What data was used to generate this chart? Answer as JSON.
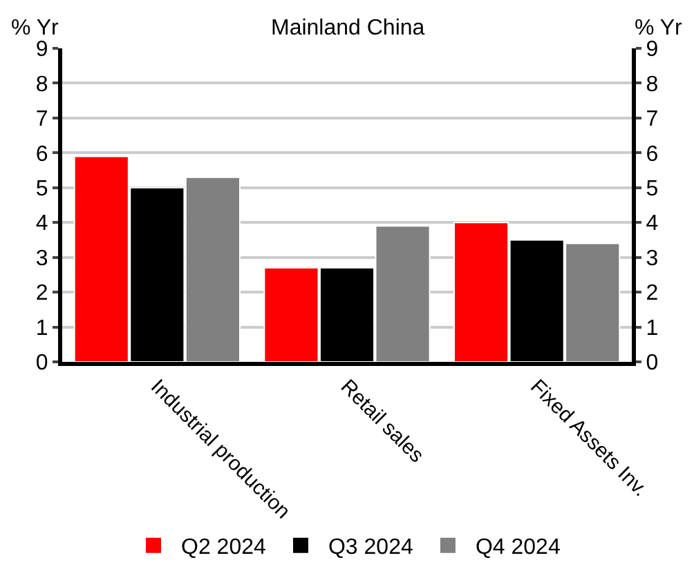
{
  "chart_data": {
    "type": "bar",
    "title": "Mainland China",
    "ylabel": "% Yr",
    "y2label": "% Yr",
    "categories": [
      "Industrial production",
      "Retail sales",
      "Fixed Assets Inv."
    ],
    "series": [
      {
        "name": "Q2 2024",
        "color": "#ff0000",
        "values": [
          5.9,
          2.7,
          4.0
        ]
      },
      {
        "name": "Q3 2024",
        "color": "#000000",
        "values": [
          5.0,
          2.7,
          3.5
        ]
      },
      {
        "name": "Q4 2024",
        "color": "#808080",
        "values": [
          5.3,
          3.9,
          3.4
        ]
      }
    ],
    "ylim": [
      0,
      9
    ],
    "yticks": [
      0,
      1,
      2,
      3,
      4,
      5,
      6,
      7,
      8,
      9
    ],
    "y2lim": [
      0,
      9
    ],
    "y2ticks": [
      0,
      1,
      2,
      3,
      4,
      5,
      6,
      7,
      8,
      9
    ],
    "grid": "y",
    "legend": "bottom"
  }
}
